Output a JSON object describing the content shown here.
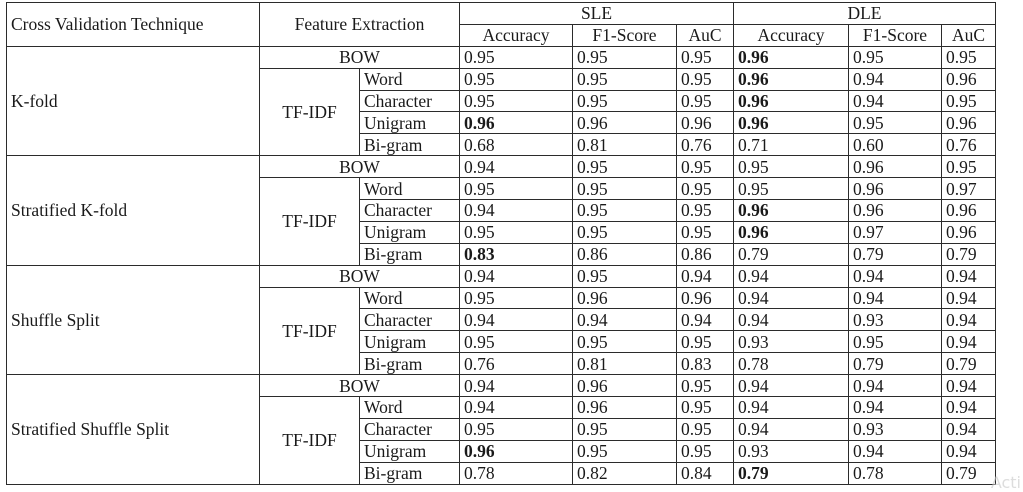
{
  "header": {
    "cv_technique": "Cross Validation Technique",
    "feature_extraction": "Feature Extraction",
    "sle": "SLE",
    "dle": "DLE",
    "metrics": [
      "Accuracy",
      "F1-Score",
      "AuC",
      "Accuracy",
      "F1-Score",
      "AuC"
    ]
  },
  "groups": [
    {
      "name": "K-fold",
      "rows": [
        {
          "feature": "BOW",
          "vals": [
            "0.95",
            "0.95",
            "0.95",
            "0.96",
            "0.95",
            "0.95"
          ],
          "bold": [
            3
          ]
        },
        {
          "feature": "Word",
          "vals": [
            "0.95",
            "0.95",
            "0.95",
            "0.96",
            "0.94",
            "0.96"
          ],
          "bold": [
            3
          ]
        },
        {
          "feature": "Character",
          "vals": [
            "0.95",
            "0.95",
            "0.95",
            "0.96",
            "0.94",
            "0.95"
          ],
          "bold": [
            3
          ]
        },
        {
          "feature": "Unigram",
          "vals": [
            "0.96",
            "0.96",
            "0.96",
            "0.96",
            "0.95",
            "0.96"
          ],
          "bold": [
            0,
            3
          ]
        },
        {
          "feature": "Bi-gram",
          "vals": [
            "0.68",
            "0.81",
            "0.76",
            "0.71",
            "0.60",
            "0.76"
          ],
          "bold": []
        }
      ]
    },
    {
      "name": "Stratified K-fold",
      "rows": [
        {
          "feature": "BOW",
          "vals": [
            "0.94",
            "0.95",
            "0.95",
            "0.95",
            "0.96",
            "0.95"
          ],
          "bold": []
        },
        {
          "feature": "Word",
          "vals": [
            "0.95",
            "0.95",
            "0.95",
            "0.95",
            "0.96",
            "0.97"
          ],
          "bold": []
        },
        {
          "feature": "Character",
          "vals": [
            "0.94",
            "0.95",
            "0.95",
            "0.96",
            "0.96",
            "0.96"
          ],
          "bold": [
            3
          ]
        },
        {
          "feature": "Unigram",
          "vals": [
            "0.95",
            "0.95",
            "0.95",
            "0.96",
            "0.97",
            "0.96"
          ],
          "bold": [
            3
          ]
        },
        {
          "feature": "Bi-gram",
          "vals": [
            "0.83",
            "0.86",
            "0.86",
            "0.79",
            "0.79",
            "0.79"
          ],
          "bold": [
            0
          ]
        }
      ]
    },
    {
      "name": "Shuffle Split",
      "rows": [
        {
          "feature": "BOW",
          "vals": [
            "0.94",
            "0.95",
            "0.94",
            "0.94",
            "0.94",
            "0.94"
          ],
          "bold": []
        },
        {
          "feature": "Word",
          "vals": [
            "0.95",
            "0.96",
            "0.96",
            "0.94",
            "0.94",
            "0.94"
          ],
          "bold": []
        },
        {
          "feature": "Character",
          "vals": [
            "0.94",
            "0.94",
            "0.94",
            "0.94",
            "0.93",
            "0.94"
          ],
          "bold": []
        },
        {
          "feature": "Unigram",
          "vals": [
            "0.95",
            "0.95",
            "0.95",
            "0.93",
            "0.95",
            "0.94"
          ],
          "bold": []
        },
        {
          "feature": "Bi-gram",
          "vals": [
            "0.76",
            "0.81",
            "0.83",
            "0.78",
            "0.79",
            "0.79"
          ],
          "bold": []
        }
      ]
    },
    {
      "name": "Stratified Shuffle Split",
      "rows": [
        {
          "feature": "BOW",
          "vals": [
            "0.94",
            "0.96",
            "0.95",
            "0.94",
            "0.94",
            "0.94"
          ],
          "bold": []
        },
        {
          "feature": "Word",
          "vals": [
            "0.94",
            "0.96",
            "0.95",
            "0.94",
            "0.94",
            "0.94"
          ],
          "bold": []
        },
        {
          "feature": "Character",
          "vals": [
            "0.95",
            "0.95",
            "0.95",
            "0.94",
            "0.93",
            "0.94"
          ],
          "bold": []
        },
        {
          "feature": "Unigram",
          "vals": [
            "0.96",
            "0.95",
            "0.95",
            "0.93",
            "0.94",
            "0.94"
          ],
          "bold": [
            0
          ]
        },
        {
          "feature": "Bi-gram",
          "vals": [
            "0.78",
            "0.82",
            "0.84",
            "0.79",
            "0.78",
            "0.79"
          ],
          "bold": [
            3
          ]
        }
      ]
    }
  ],
  "tfidf_label": "TF-IDF",
  "watermark": "Acti"
}
